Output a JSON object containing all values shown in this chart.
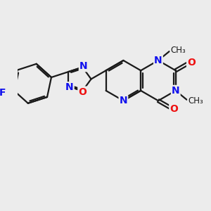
{
  "bg_color": "#ececec",
  "bond_color": "#1a1a1a",
  "bond_width": 1.6,
  "atom_colors": {
    "N": "#1010ee",
    "O": "#ee1010",
    "F": "#1010ee",
    "C": "#1a1a1a"
  },
  "font_size_atom": 10,
  "font_size_methyl": 8.5
}
